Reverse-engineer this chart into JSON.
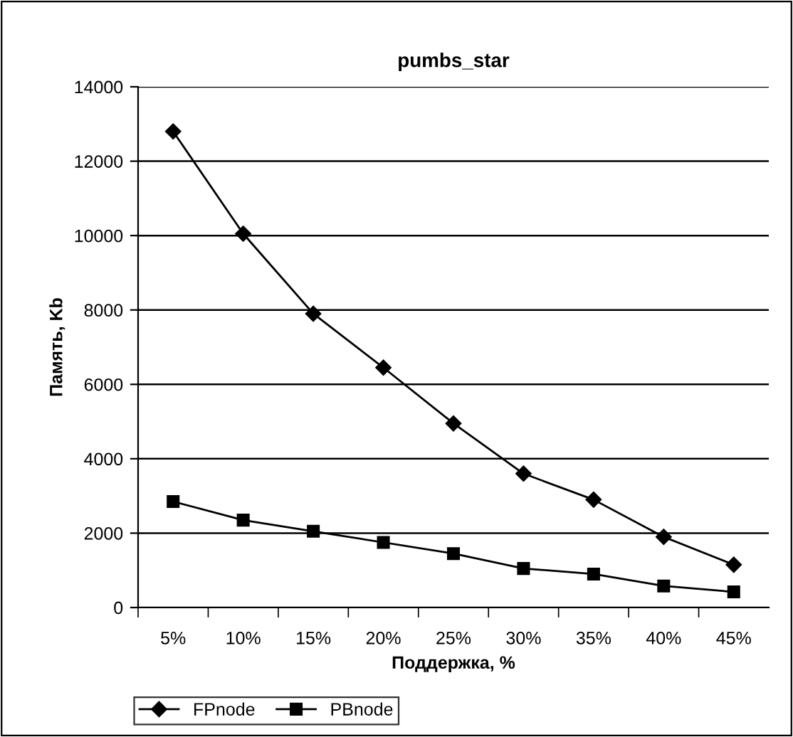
{
  "chart_data": {
    "type": "line",
    "title": "pumbs_star",
    "xlabel": "Поддержка, %",
    "ylabel": "Память, Kb",
    "categories": [
      "5%",
      "10%",
      "15%",
      "20%",
      "25%",
      "30%",
      "35%",
      "40%",
      "45%"
    ],
    "series": [
      {
        "name": "FPnode",
        "color": "#000000",
        "marker": "diamond",
        "values": [
          12800,
          10050,
          7900,
          6450,
          4950,
          3600,
          2900,
          1900,
          1150
        ]
      },
      {
        "name": "PBnode",
        "color": "#000000",
        "marker": "square",
        "values": [
          2850,
          2350,
          2050,
          1750,
          1450,
          1050,
          900,
          580,
          420
        ]
      }
    ],
    "ylim": [
      0,
      14000
    ],
    "yticks": [
      0,
      2000,
      4000,
      6000,
      8000,
      10000,
      12000,
      14000
    ],
    "grid": "y",
    "legend": "bottom left",
    "line_style": "solid"
  }
}
